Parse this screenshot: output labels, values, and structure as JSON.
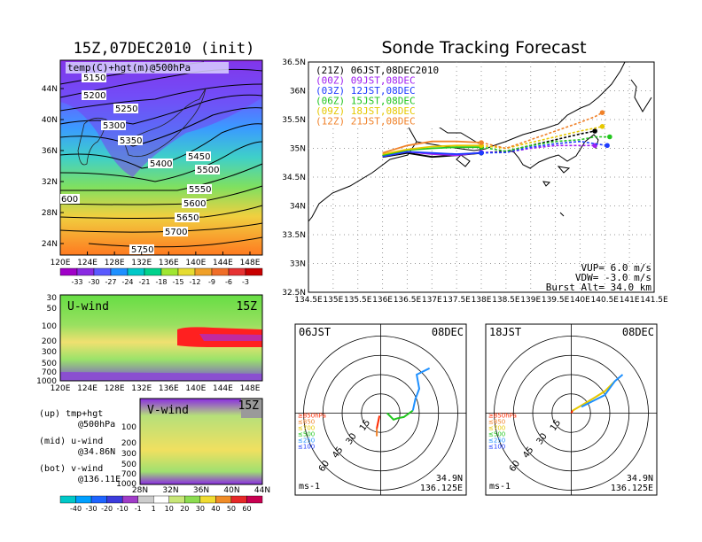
{
  "chart_data": [
    {
      "type": "heatmap",
      "title": "15Z,07DEC2010 (init)",
      "field_label": "temp(C)+hgt(m)@500hPa",
      "xticks": [
        "120E",
        "124E",
        "128E",
        "132E",
        "136E",
        "140E",
        "144E",
        "148E"
      ],
      "yticks": [
        "44N",
        "40N",
        "36N",
        "32N",
        "28N",
        "24N"
      ],
      "colorbar": [
        "-33",
        "-30",
        "-27",
        "-24",
        "-21",
        "-18",
        "-15",
        "-12",
        "-9",
        "-6",
        "-3"
      ],
      "contours": [
        "5150",
        "5200",
        "5250",
        "5300",
        "5350",
        "5400",
        "5450",
        "5500",
        "5550",
        "5600",
        "5650",
        "5700",
        "5750",
        "600"
      ]
    },
    {
      "type": "line",
      "title": "Sonde Tracking Forecast",
      "xticks": [
        "134.5E",
        "135E",
        "135.5E",
        "136E",
        "136.5E",
        "137E",
        "137.5E",
        "138E",
        "138.5E",
        "139E",
        "139.5E",
        "140E",
        "140.5E",
        "141E",
        "141.5E"
      ],
      "yticks": [
        "36.5N",
        "36N",
        "35.5N",
        "35N",
        "34.5N",
        "34N",
        "33.5N",
        "33N",
        "32.5N"
      ],
      "xlim": [
        134.5,
        141.5
      ],
      "ylim": [
        32.5,
        36.5
      ],
      "legend": [
        {
          "label": "(21Z) 06JST,08DEC2010",
          "color": "#000000"
        },
        {
          "label": "(00Z) 09JST,08DEC",
          "color": "#a020f0"
        },
        {
          "label": "(03Z) 12JST,08DEC",
          "color": "#1e3cff"
        },
        {
          "label": "(06Z) 15JST,08DEC",
          "color": "#22c61e"
        },
        {
          "label": "(09Z) 18JST,08DEC",
          "color": "#e6c800"
        },
        {
          "label": "(12Z) 21JST,08DEC",
          "color": "#f0822a"
        }
      ],
      "series": [
        {
          "name": "(21Z) 06JST,08DEC2010",
          "color": "#000000",
          "x": [
            136.0,
            136.5,
            137.0,
            137.5,
            138.0,
            138.5,
            139.0,
            139.5,
            140.0,
            140.3
          ],
          "y": [
            34.85,
            34.92,
            34.85,
            34.88,
            34.92,
            34.95,
            35.05,
            35.15,
            35.25,
            35.3
          ]
        },
        {
          "name": "(00Z) 09JST,08DEC",
          "color": "#a020f0",
          "x": [
            136.0,
            136.5,
            137.0,
            137.5,
            138.0,
            138.5,
            139.0,
            139.5,
            140.0,
            140.3
          ],
          "y": [
            34.86,
            34.94,
            34.9,
            34.88,
            34.93,
            34.93,
            35.0,
            35.05,
            35.05,
            35.05
          ]
        },
        {
          "name": "(03Z) 12JST,08DEC",
          "color": "#1e3cff",
          "x": [
            136.0,
            136.5,
            137.0,
            137.5,
            138.0,
            138.5,
            139.0,
            139.5,
            140.0,
            140.3,
            140.55
          ],
          "y": [
            34.86,
            34.94,
            34.92,
            34.9,
            34.92,
            34.93,
            35.02,
            35.08,
            35.12,
            35.08,
            35.05
          ]
        },
        {
          "name": "(06Z) 15JST,08DEC",
          "color": "#22c61e",
          "x": [
            136.0,
            136.5,
            137.0,
            137.5,
            138.0,
            138.5,
            139.0,
            139.5,
            140.0,
            140.3,
            140.6
          ],
          "y": [
            34.88,
            34.97,
            35.0,
            35.02,
            35.02,
            34.95,
            35.05,
            35.12,
            35.15,
            35.2,
            35.2
          ]
        },
        {
          "name": "(09Z) 18JST,08DEC",
          "color": "#e6c800",
          "x": [
            136.0,
            136.5,
            137.0,
            137.5,
            138.0,
            138.5,
            139.0,
            139.5,
            140.0,
            140.3,
            140.45
          ],
          "y": [
            34.9,
            34.98,
            35.03,
            35.05,
            35.05,
            35.0,
            35.1,
            35.2,
            35.3,
            35.35,
            35.38
          ]
        },
        {
          "name": "(12Z) 21JST,08DEC",
          "color": "#f0822a",
          "x": [
            136.0,
            136.5,
            137.0,
            137.5,
            138.0,
            138.5,
            139.0,
            139.5,
            140.0,
            140.3,
            140.45
          ],
          "y": [
            34.92,
            35.05,
            35.12,
            35.12,
            35.1,
            35.0,
            35.15,
            35.3,
            35.45,
            35.55,
            35.62
          ]
        }
      ],
      "params": {
        "vup": "VUP= 6.0 m/s",
        "vdw": "VDW= -3.0 m/s",
        "burst": "Burst Alt= 34.0 km"
      }
    },
    {
      "type": "heatmap",
      "title": "U-wind",
      "time": "15Z",
      "xticks": [
        "120E",
        "124E",
        "128E",
        "132E",
        "136E",
        "140E",
        "144E",
        "148E"
      ],
      "yticks": [
        "30",
        "50",
        "100",
        "200",
        "300",
        "500",
        "700",
        "1000"
      ]
    },
    {
      "type": "heatmap",
      "title": "V-wind",
      "time": "15Z",
      "xticks": [
        "28N",
        "32N",
        "36N",
        "40N",
        "44N"
      ],
      "yticks": [
        "100",
        "200",
        "300",
        "500",
        "700",
        "1000"
      ],
      "colorbar": [
        "-40",
        "-30",
        "-20",
        "-10",
        "-1",
        "1",
        "10",
        "20",
        "30",
        "40",
        "50",
        "60"
      ]
    },
    {
      "type": "line",
      "title": "06JST",
      "date": "08DEC",
      "rings": [
        "15",
        "30",
        "45",
        "60"
      ],
      "levels": [
        "≥850hPa",
        "≤850",
        "≤700",
        "≤500",
        "≤250",
        "≤100"
      ],
      "unit": "ms-1",
      "location": [
        "34.9N",
        "136.125E"
      ],
      "series": [
        {
          "name": "≥850hPa",
          "color": "#ff2a00",
          "x": [
            -1,
            -3
          ],
          "y": [
            -2,
            -12
          ]
        },
        {
          "name": "≤850",
          "color": "#f0822a",
          "x": [
            -3,
            -3
          ],
          "y": [
            -12,
            -18
          ]
        },
        {
          "name": "≤500",
          "color": "#22c61e",
          "x": [
            5,
            10,
            13,
            18,
            25
          ],
          "y": [
            0,
            -5,
            -4,
            -3,
            2
          ]
        },
        {
          "name": "≤250",
          "color": "#1e90ff",
          "x": [
            25,
            27,
            30,
            28,
            38
          ],
          "y": [
            2,
            11,
            19,
            30,
            35
          ]
        }
      ]
    },
    {
      "type": "line",
      "title": "18JST",
      "date": "08DEC",
      "rings": [
        "15",
        "30",
        "45",
        "60"
      ],
      "levels": [
        "≥850hPa",
        "≤850",
        "≤700",
        "≤500",
        "≤250",
        "≤100"
      ],
      "unit": "ms-1",
      "location": [
        "34.9N",
        "136.125E"
      ],
      "series": [
        {
          "name": "≥850hPa",
          "color": "#ff2a00",
          "x": [
            0,
            1
          ],
          "y": [
            0,
            2
          ]
        },
        {
          "name": "≤850",
          "color": "#e6c800",
          "x": [
            1,
            8,
            18,
            26,
            34
          ],
          "y": [
            2,
            6,
            12,
            17,
            25
          ]
        },
        {
          "name": "≤250",
          "color": "#1e90ff",
          "x": [
            8,
            18,
            26,
            34,
            40
          ],
          "y": [
            5,
            10,
            14,
            25,
            30
          ]
        }
      ]
    }
  ],
  "left_labels": {
    "up": "(up) tmp+hgt",
    "up2": "@500hPa",
    "mid": "(mid) u-wind",
    "mid2": "@34.86N",
    "bot": "(bot) v-wind",
    "bot2": "@136.11E"
  }
}
